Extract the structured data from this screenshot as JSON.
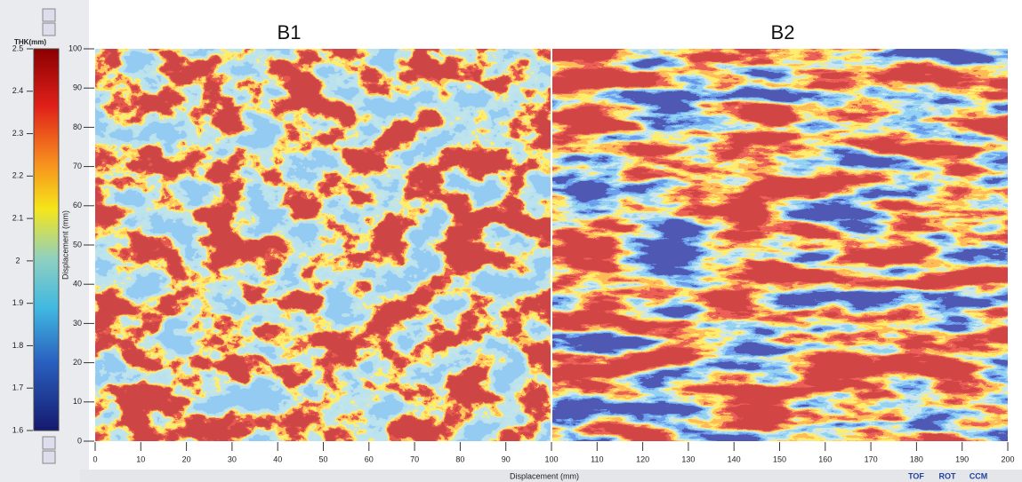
{
  "colorbar": {
    "title": "THK(mm)",
    "ticks": [
      2.5,
      2.4,
      2.3,
      2.2,
      2.1,
      2,
      1.9,
      1.8,
      1.7,
      1.6
    ]
  },
  "plot": {
    "titles": [
      "B1",
      "B2"
    ],
    "y_axis": {
      "label": "Displacement (mm)",
      "ticks": [
        0,
        10,
        20,
        30,
        40,
        50,
        60,
        70,
        80,
        90,
        100
      ]
    },
    "x_axis": {
      "label": "Displacement (mm)",
      "ticks": [
        0,
        10,
        20,
        30,
        40,
        50,
        60,
        70,
        80,
        90,
        100,
        110,
        120,
        130,
        140,
        150,
        160,
        170,
        180,
        190,
        200
      ]
    }
  },
  "tabs": [
    "TOF",
    "ROT",
    "CCM"
  ]
}
